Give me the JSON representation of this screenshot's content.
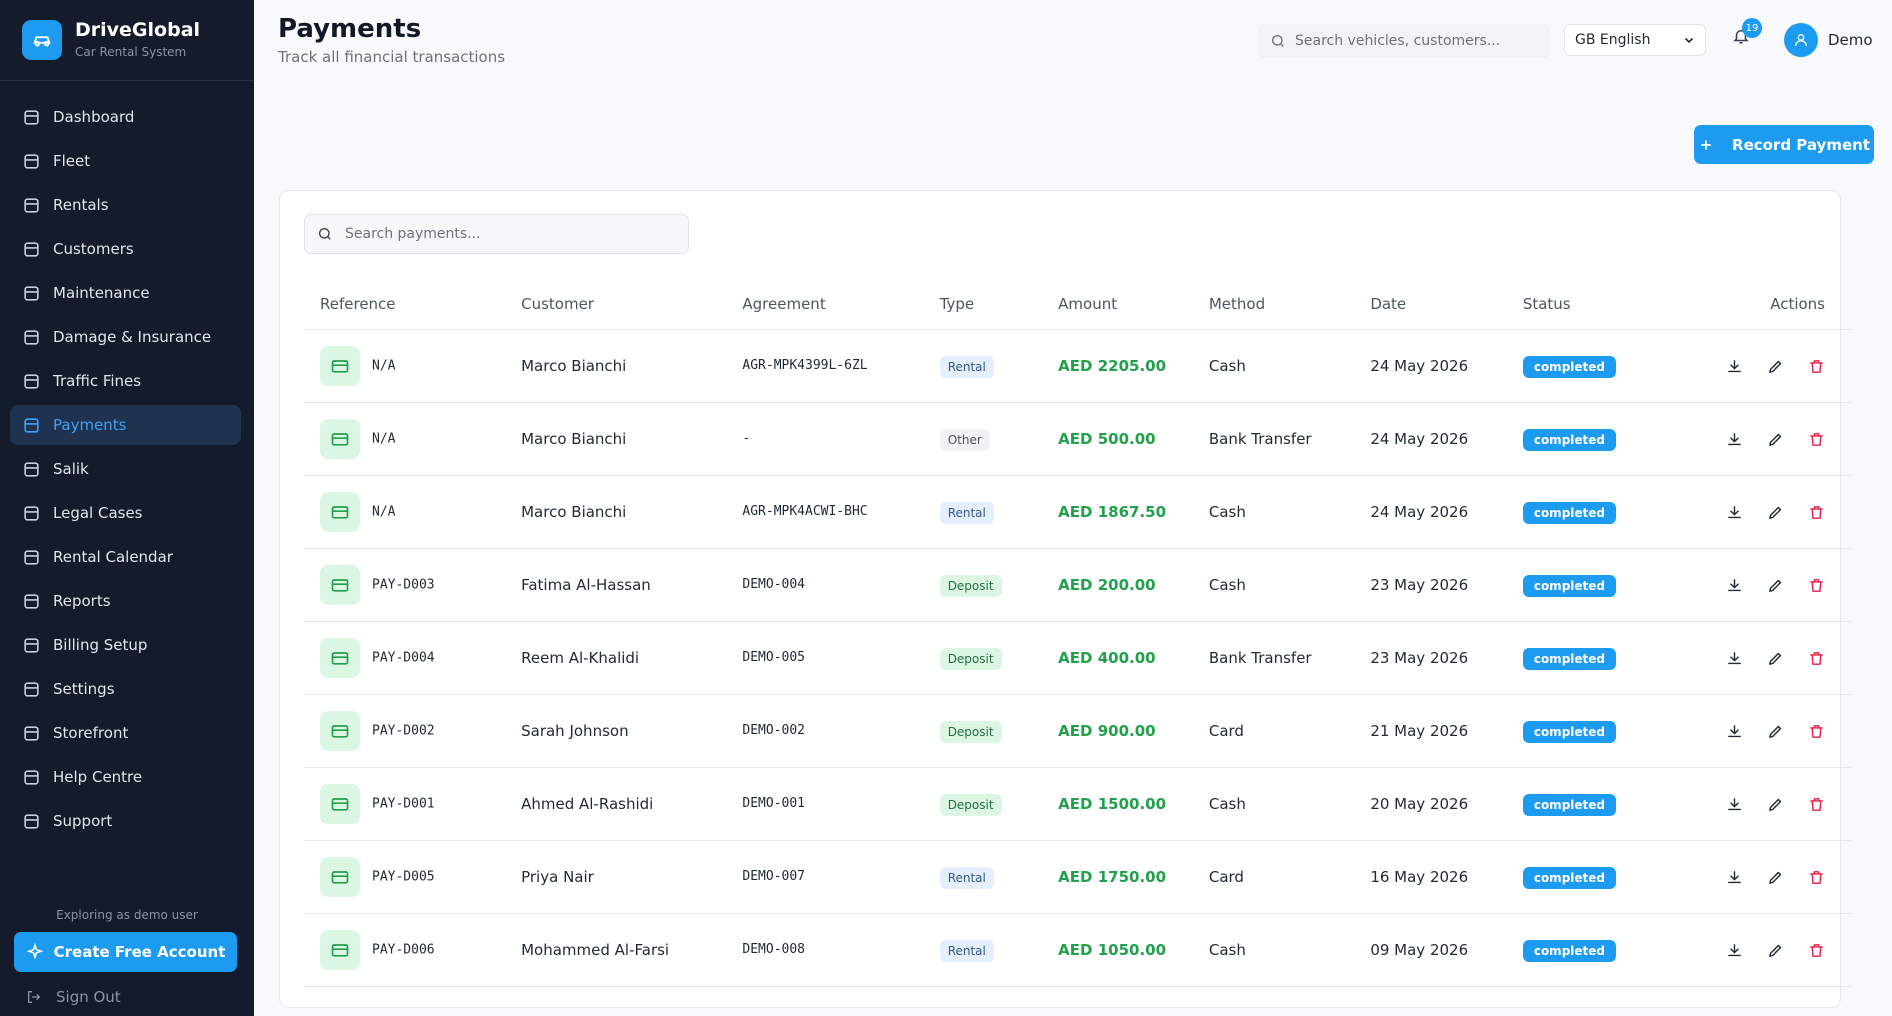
{
  "sidebar": {
    "brand": "DriveGlobal",
    "tagline": "Car Rental System",
    "nav": [
      "Dashboard",
      "Fleet",
      "Rentals",
      "Customers",
      "Maintenance",
      "Damage & Insurance",
      "Traffic Fines",
      "Payments",
      "Salik",
      "Legal Cases",
      "Rental Calendar",
      "Reports",
      "Billing Setup",
      "Settings",
      "Storefront",
      "Help Centre",
      "Support"
    ],
    "active": "Payments",
    "demo_note": "Exploring as demo user",
    "cta": "Create Free Account",
    "sign_out": "Sign Out"
  },
  "header": {
    "title": "Payments",
    "subtitle": "Track all financial transactions",
    "search_placeholder": "Search vehicles, customers...",
    "language": "GB English",
    "notifications": 19,
    "user": "Demo"
  },
  "toolbar": {
    "record_button": "Record Payment",
    "search_placeholder": "Search payments..."
  },
  "table": {
    "columns": [
      "Reference",
      "Customer",
      "Agreement",
      "Type",
      "Amount",
      "Method",
      "Date",
      "Status",
      "Actions"
    ],
    "type_colors": {
      "Rental": [
        "#e4eefc",
        "#3a5a86"
      ],
      "Other": [
        "#f1f2f4",
        "#4b5563"
      ],
      "Deposit": [
        "#dcf6e4",
        "#23703f"
      ]
    },
    "rows": [
      {
        "reference": "N/A",
        "customer": "Marco Bianchi",
        "agreement": "AGR-MPK4399L-6ZL",
        "type": "Rental",
        "amount": "AED 2205.00",
        "method": "Cash",
        "date": "24 May 2026",
        "status": "completed"
      },
      {
        "reference": "N/A",
        "customer": "Marco Bianchi",
        "agreement": "-",
        "type": "Other",
        "amount": "AED 500.00",
        "method": "Bank Transfer",
        "date": "24 May 2026",
        "status": "completed"
      },
      {
        "reference": "N/A",
        "customer": "Marco Bianchi",
        "agreement": "AGR-MPK4ACWI-BHC",
        "type": "Rental",
        "amount": "AED 1867.50",
        "method": "Cash",
        "date": "24 May 2026",
        "status": "completed"
      },
      {
        "reference": "PAY-D003",
        "customer": "Fatima Al-Hassan",
        "agreement": "DEMO-004",
        "type": "Deposit",
        "amount": "AED 200.00",
        "method": "Cash",
        "date": "23 May 2026",
        "status": "completed"
      },
      {
        "reference": "PAY-D004",
        "customer": "Reem Al-Khalidi",
        "agreement": "DEMO-005",
        "type": "Deposit",
        "amount": "AED 400.00",
        "method": "Bank Transfer",
        "date": "23 May 2026",
        "status": "completed"
      },
      {
        "reference": "PAY-D002",
        "customer": "Sarah Johnson",
        "agreement": "DEMO-002",
        "type": "Deposit",
        "amount": "AED 900.00",
        "method": "Card",
        "date": "21 May 2026",
        "status": "completed"
      },
      {
        "reference": "PAY-D001",
        "customer": "Ahmed Al-Rashidi",
        "agreement": "DEMO-001",
        "type": "Deposit",
        "amount": "AED 1500.00",
        "method": "Cash",
        "date": "20 May 2026",
        "status": "completed"
      },
      {
        "reference": "PAY-D005",
        "customer": "Priya Nair",
        "agreement": "DEMO-007",
        "type": "Rental",
        "amount": "AED 1750.00",
        "method": "Card",
        "date": "16 May 2026",
        "status": "completed"
      },
      {
        "reference": "PAY-D006",
        "customer": "Mohammed Al-Farsi",
        "agreement": "DEMO-008",
        "type": "Rental",
        "amount": "AED 1050.00",
        "method": "Cash",
        "date": "09 May 2026",
        "status": "completed"
      }
    ]
  }
}
